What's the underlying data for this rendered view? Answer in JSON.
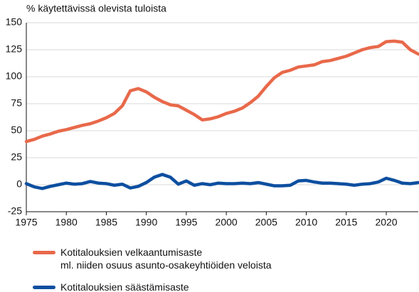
{
  "chart_data": {
    "type": "line",
    "ylabel": "% käytettävissä olevista tuloista",
    "x": [
      1975,
      1976,
      1977,
      1978,
      1979,
      1980,
      1981,
      1982,
      1983,
      1984,
      1985,
      1986,
      1987,
      1988,
      1989,
      1990,
      1991,
      1992,
      1993,
      1994,
      1995,
      1996,
      1997,
      1998,
      1999,
      2000,
      2001,
      2002,
      2003,
      2004,
      2005,
      2006,
      2007,
      2008,
      2009,
      2010,
      2011,
      2012,
      2013,
      2014,
      2015,
      2016,
      2017,
      2018,
      2019,
      2020,
      2021,
      2022,
      2023,
      2024
    ],
    "series": [
      {
        "name": "Kotitalouksien velkaantumisaste\nml. niiden osuus asunto-osakeyhtiöiden veloista",
        "color": "#e8694a",
        "values": [
          40,
          42,
          45,
          47,
          49.5,
          51,
          53,
          55,
          56.5,
          59,
          62,
          66,
          73,
          87,
          89,
          86,
          81,
          77,
          74,
          73,
          69,
          65,
          60,
          61,
          63,
          66,
          68,
          71,
          76,
          82,
          91,
          99,
          104,
          106,
          109,
          110,
          111,
          114,
          115,
          117,
          119,
          122,
          125,
          127,
          128,
          132.5,
          133,
          132,
          125,
          121
        ]
      },
      {
        "name": "Kotitalouksien säästämisaste",
        "color": "#0d4fa0",
        "values": [
          1,
          -2,
          -3.5,
          -1.5,
          0,
          1.5,
          0.5,
          1,
          3,
          1.5,
          1,
          -0.5,
          0.5,
          -3,
          -1.5,
          2,
          7,
          9.5,
          7,
          0.5,
          3.5,
          -0.5,
          1,
          0,
          1.5,
          1,
          1,
          1.5,
          1,
          2,
          0.5,
          -1,
          -1,
          -0.5,
          3.5,
          4,
          2.5,
          1.5,
          1.5,
          1,
          0.5,
          -0.5,
          0.5,
          1,
          2.5,
          6,
          4,
          1.5,
          1,
          2
        ]
      }
    ],
    "xlim": [
      1975,
      2024
    ],
    "xticks": [
      1975,
      1980,
      1985,
      1990,
      1995,
      2000,
      2005,
      2010,
      2015,
      2020
    ],
    "ylim": [
      -25,
      150
    ],
    "yticks": [
      -25,
      0,
      25,
      50,
      75,
      100,
      125,
      150
    ],
    "grid": true
  }
}
